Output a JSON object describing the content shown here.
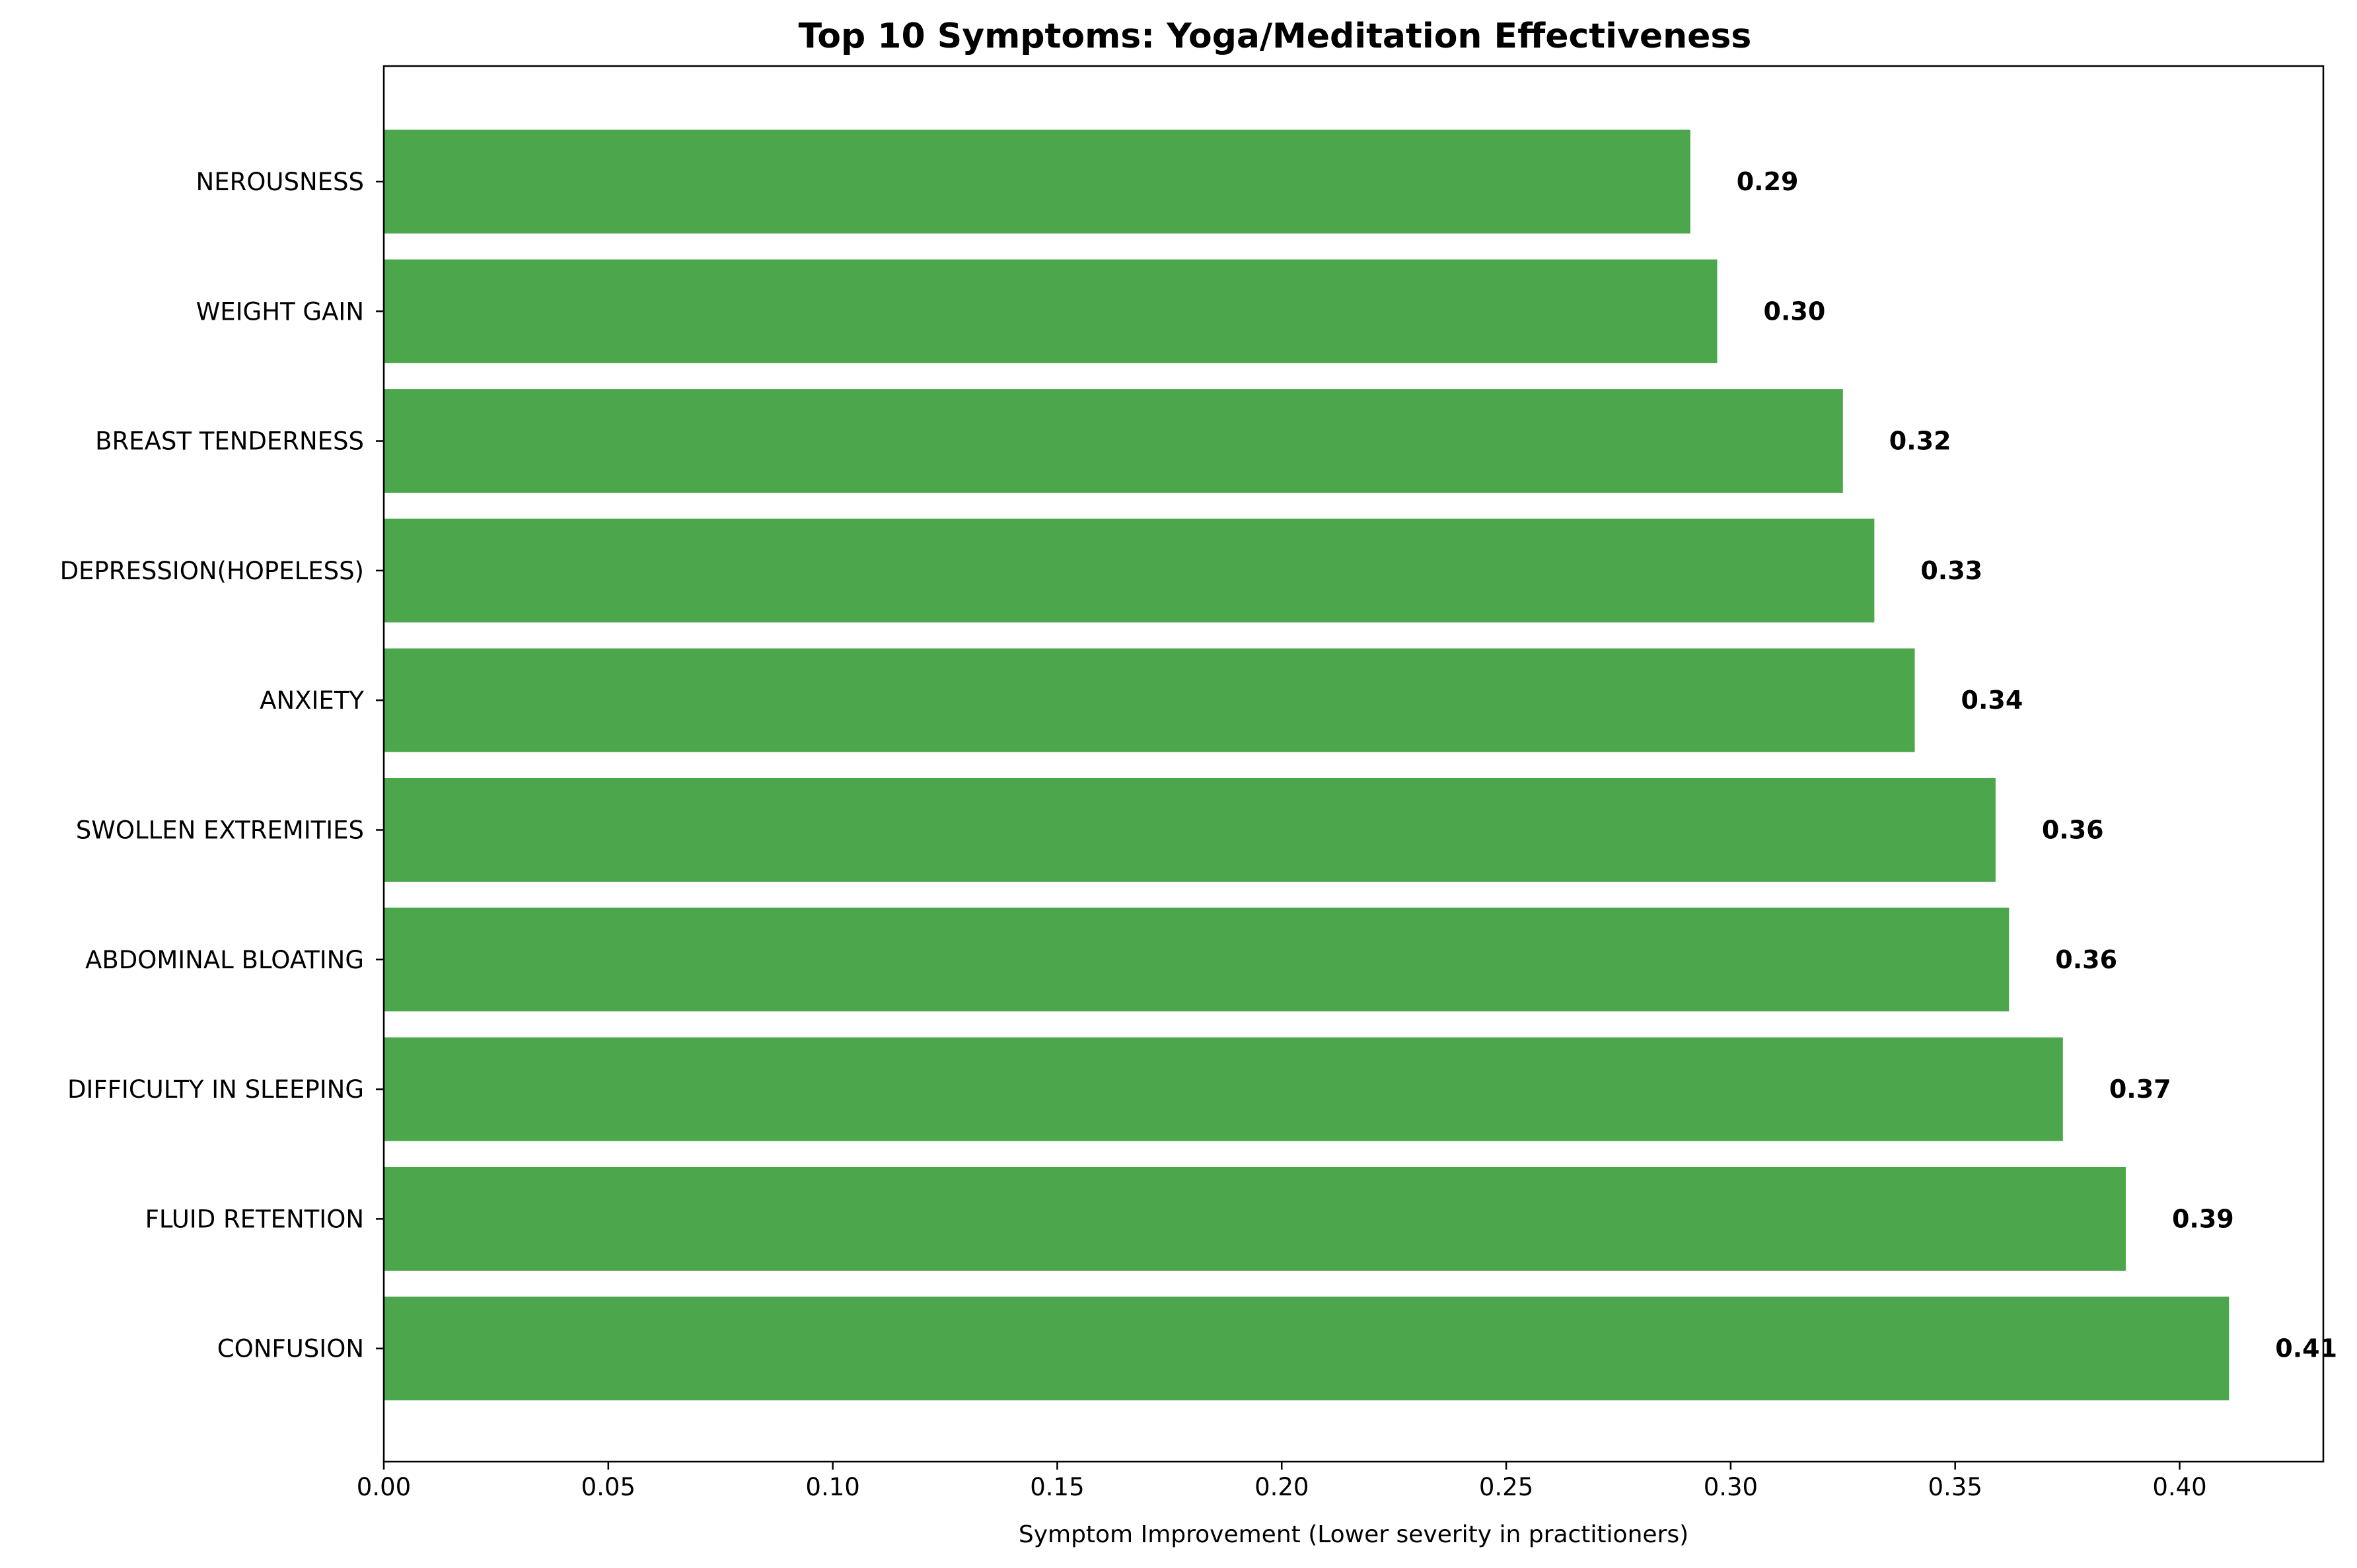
{
  "chart_data": {
    "type": "bar",
    "orientation": "horizontal",
    "title": "Top 10 Symptoms: Yoga/Meditation Effectiveness",
    "xlabel": "Symptom Improvement (Lower severity in practitioners)",
    "ylabel": "",
    "xlim": [
      0,
      0.432
    ],
    "xticks": [
      "0.00",
      "0.05",
      "0.10",
      "0.15",
      "0.20",
      "0.25",
      "0.30",
      "0.35",
      "0.40"
    ],
    "grid": false,
    "bar_color": "#4ca64c",
    "categories": [
      "NEROUSNESS",
      "WEIGHT GAIN",
      "BREAST TENDERNESS",
      "DEPRESSION(HOPELESS)",
      "ANXIETY",
      "SWOLLEN EXTREMITIES",
      "ABDOMINAL BLOATING",
      "DIFFICULTY IN SLEEPING",
      "FLUID RETENTION",
      "CONFUSION"
    ],
    "values": [
      0.291,
      0.297,
      0.325,
      0.332,
      0.341,
      0.359,
      0.362,
      0.374,
      0.388,
      0.411
    ],
    "data_labels": [
      "0.29",
      "0.30",
      "0.32",
      "0.33",
      "0.34",
      "0.36",
      "0.36",
      "0.37",
      "0.39",
      "0.41"
    ]
  }
}
